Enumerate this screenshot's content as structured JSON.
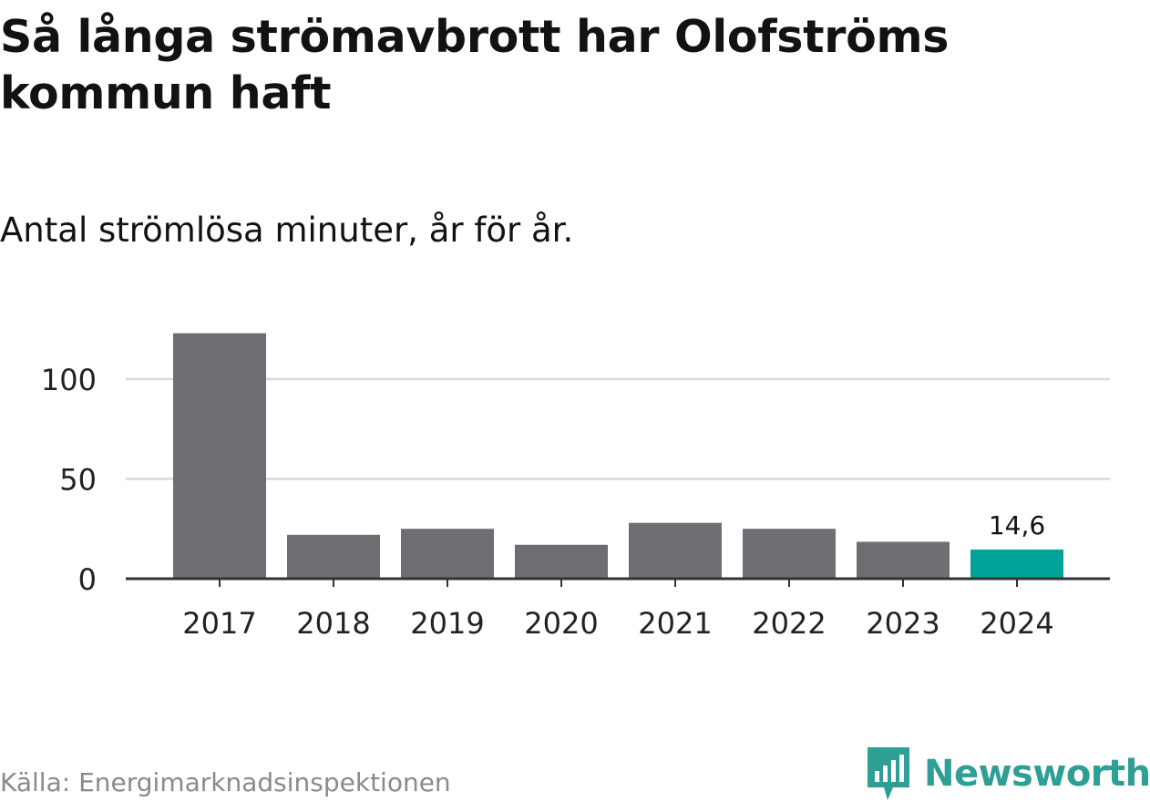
{
  "title": "Så långa strömavbrott har Olofströms kommun haft",
  "subtitle": "Antal strömlösa minuter, år för år.",
  "source": "Källa: Energimarknadsinspektionen",
  "brand": {
    "name": "Newsworthy",
    "icon": "newsworthy-logo-icon",
    "color": "#2d9f95"
  },
  "colors": {
    "bar": "#6e6d72",
    "highlight": "#00a398",
    "grid": "#d9d9d9",
    "axis": "#333333",
    "text": "#222222"
  },
  "chart_data": {
    "type": "bar",
    "title": "Så långa strömavbrott har Olofströms kommun haft",
    "subtitle": "Antal strömlösa minuter, år för år.",
    "xlabel": "",
    "ylabel": "",
    "categories": [
      "2017",
      "2018",
      "2019",
      "2020",
      "2021",
      "2022",
      "2023",
      "2024"
    ],
    "values": [
      123,
      22,
      25,
      17,
      28,
      25,
      18.5,
      14.6
    ],
    "highlight_index": 7,
    "data_labels": [
      {
        "index": 7,
        "text": "14,6"
      }
    ],
    "yticks": [
      0,
      50,
      100
    ],
    "ytick_labels": [
      "0",
      "50",
      "100"
    ],
    "ylim": [
      0,
      125
    ],
    "grid": true
  }
}
